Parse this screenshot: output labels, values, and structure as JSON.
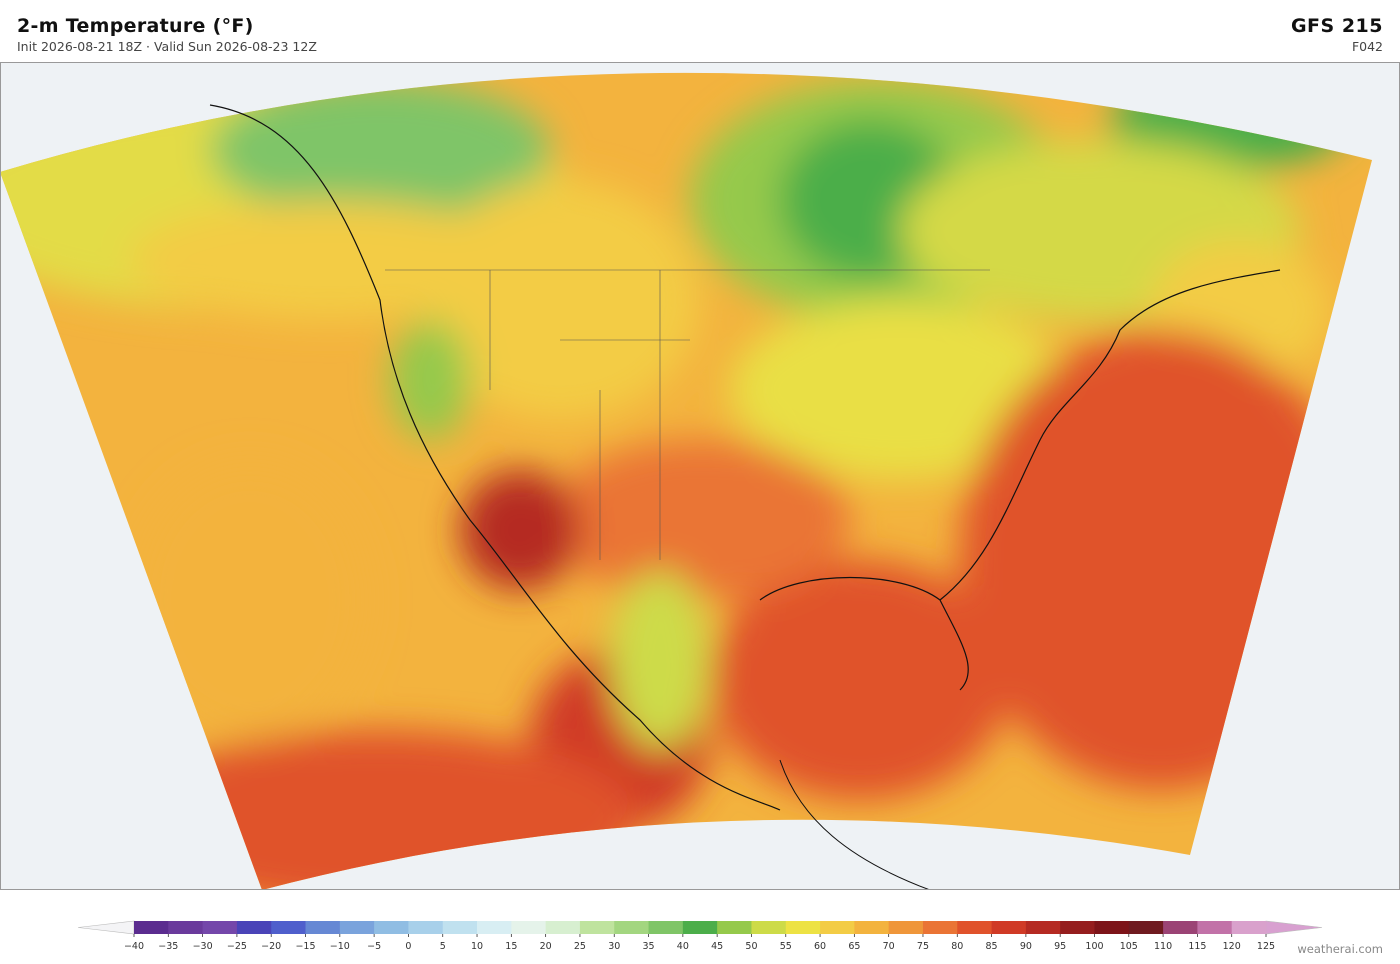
{
  "header": {
    "title": "2-m Temperature  (°F)",
    "subtitle": "Init 2026-08-21 18Z  ·  Valid Sun 2026-08-23 12Z",
    "model": "GFS  215",
    "forecast_hour": "F042"
  },
  "colorbar": {
    "ticks": [
      {
        "value": -40,
        "label": "−40"
      },
      {
        "value": -35,
        "label": "−35"
      },
      {
        "value": -30,
        "label": "−30"
      },
      {
        "value": -25,
        "label": "−25"
      },
      {
        "value": -20,
        "label": "−20"
      },
      {
        "value": -15,
        "label": "−15"
      },
      {
        "value": -10,
        "label": "−10"
      },
      {
        "value": -5,
        "label": "−5"
      },
      0,
      5,
      10,
      15,
      20,
      25,
      30,
      35,
      40,
      45,
      50,
      55,
      60,
      65,
      70,
      75,
      80,
      85,
      90,
      95,
      100,
      105,
      110,
      115,
      120,
      125
    ],
    "colors": [
      "#5b2c8f",
      "#6a3a9c",
      "#7447aa",
      "#4a44b8",
      "#4f5fcc",
      "#6688d4",
      "#7aa3dc",
      "#90bde3",
      "#a8d0ea",
      "#c0e1ef",
      "#d8eef3",
      "#e5f3ea",
      "#d7efd0",
      "#bfe39e",
      "#a3d680",
      "#7fc567",
      "#4cae4a",
      "#95c94b",
      "#cddb48",
      "#ede244",
      "#f3cc45",
      "#f3b33e",
      "#ef963a",
      "#ea7435",
      "#e0522b",
      "#d03a26",
      "#b52a22",
      "#951d1e",
      "#7d1419",
      "#6f1a20",
      "#9b4375",
      "#c272a8",
      "#d9a1cc"
    ],
    "under_color": "#f4f4f6",
    "over_color": "#d8a0d0"
  },
  "credit": "weatherai.com"
}
